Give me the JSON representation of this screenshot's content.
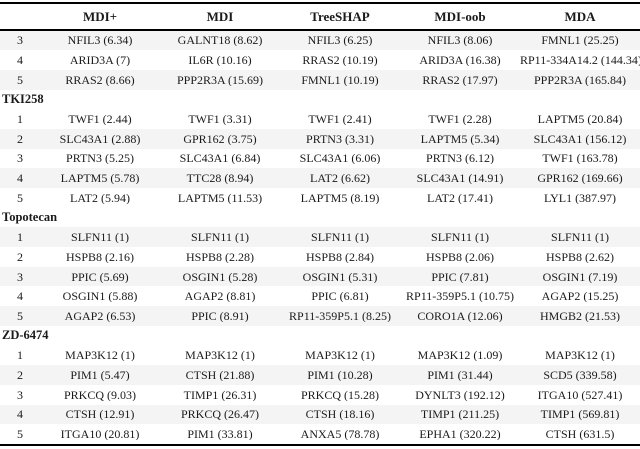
{
  "colors": {
    "text": "#1a1a1a",
    "stripe": "#f4f4f4",
    "rule": "#000000",
    "background": "#ffffff"
  },
  "table": {
    "rank_header": "",
    "columns": [
      "MDI+",
      "MDI",
      "TreeSHAP",
      "MDI-oob",
      "MDA"
    ],
    "groups": [
      {
        "label": "",
        "rows": [
          {
            "rank": "3",
            "cells": [
              "NFIL3 (6.34)",
              "GALNT18 (8.62)",
              "NFIL3 (6.25)",
              "NFIL3 (8.06)",
              "FMNL1 (25.25)"
            ]
          },
          {
            "rank": "4",
            "cells": [
              "ARID3A (7)",
              "IL6R (10.16)",
              "RRAS2 (10.19)",
              "ARID3A (16.38)",
              "RP11-334A14.2 (144.34)"
            ]
          },
          {
            "rank": "5",
            "cells": [
              "RRAS2 (8.66)",
              "PPP2R3A (15.69)",
              "FMNL1 (10.19)",
              "RRAS2 (17.97)",
              "PPP2R3A (165.84)"
            ]
          }
        ]
      },
      {
        "label": "TKI258",
        "rows": [
          {
            "rank": "1",
            "cells": [
              "TWF1 (2.44)",
              "TWF1 (3.31)",
              "TWF1 (2.41)",
              "TWF1 (2.28)",
              "LAPTM5 (20.84)"
            ]
          },
          {
            "rank": "2",
            "cells": [
              "SLC43A1 (2.88)",
              "GPR162 (3.75)",
              "PRTN3 (3.31)",
              "LAPTM5 (5.34)",
              "SLC43A1 (156.12)"
            ]
          },
          {
            "rank": "3",
            "cells": [
              "PRTN3 (5.25)",
              "SLC43A1 (6.84)",
              "SLC43A1 (6.06)",
              "PRTN3 (6.12)",
              "TWF1 (163.78)"
            ]
          },
          {
            "rank": "4",
            "cells": [
              "LAPTM5 (5.78)",
              "TTC28 (8.94)",
              "LAT2 (6.62)",
              "SLC43A1 (14.91)",
              "GPR162 (169.66)"
            ]
          },
          {
            "rank": "5",
            "cells": [
              "LAT2 (5.94)",
              "LAPTM5 (11.53)",
              "LAPTM5 (8.19)",
              "LAT2 (17.41)",
              "LYL1 (387.97)"
            ]
          }
        ]
      },
      {
        "label": "Topotecan",
        "rows": [
          {
            "rank": "1",
            "cells": [
              "SLFN11 (1)",
              "SLFN11 (1)",
              "SLFN11 (1)",
              "SLFN11 (1)",
              "SLFN11 (1)"
            ]
          },
          {
            "rank": "2",
            "cells": [
              "HSPB8 (2.16)",
              "HSPB8 (2.28)",
              "HSPB8 (2.84)",
              "HSPB8 (2.06)",
              "HSPB8 (2.62)"
            ]
          },
          {
            "rank": "3",
            "cells": [
              "PPIC (5.69)",
              "OSGIN1 (5.28)",
              "OSGIN1 (5.31)",
              "PPIC (7.81)",
              "OSGIN1 (7.19)"
            ]
          },
          {
            "rank": "4",
            "cells": [
              "OSGIN1 (5.88)",
              "AGAP2 (8.81)",
              "PPIC (6.81)",
              "RP11-359P5.1 (10.75)",
              "AGAP2 (15.25)"
            ]
          },
          {
            "rank": "5",
            "cells": [
              "AGAP2 (6.53)",
              "PPIC (8.91)",
              "RP11-359P5.1 (8.25)",
              "CORO1A (12.06)",
              "HMGB2 (21.53)"
            ]
          }
        ]
      },
      {
        "label": "ZD-6474",
        "rows": [
          {
            "rank": "1",
            "cells": [
              "MAP3K12 (1)",
              "MAP3K12 (1)",
              "MAP3K12 (1)",
              "MAP3K12 (1.09)",
              "MAP3K12 (1)"
            ]
          },
          {
            "rank": "2",
            "cells": [
              "PIM1 (5.47)",
              "CTSH (21.88)",
              "PIM1 (10.28)",
              "PIM1 (31.44)",
              "SCD5 (339.58)"
            ]
          },
          {
            "rank": "3",
            "cells": [
              "PRKCQ (9.03)",
              "TIMP1 (26.31)",
              "PRKCQ (15.28)",
              "DYNLT3 (192.12)",
              "ITGA10 (527.41)"
            ]
          },
          {
            "rank": "4",
            "cells": [
              "CTSH (12.91)",
              "PRKCQ (26.47)",
              "CTSH (18.16)",
              "TIMP1 (211.25)",
              "TIMP1 (569.81)"
            ]
          },
          {
            "rank": "5",
            "cells": [
              "ITGA10 (20.81)",
              "PIM1 (33.81)",
              "ANXA5 (78.78)",
              "EPHA1 (320.22)",
              "CTSH (631.5)"
            ]
          }
        ]
      }
    ]
  }
}
